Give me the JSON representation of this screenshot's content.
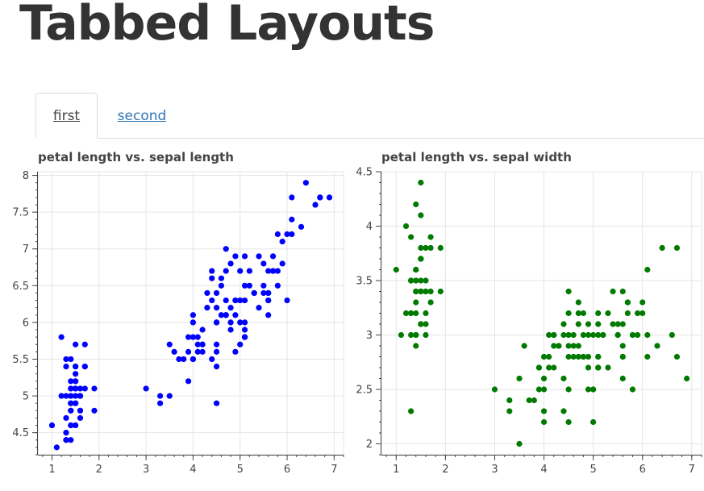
{
  "page": {
    "title": "Tabbed Layouts"
  },
  "tabs": [
    {
      "label": "first",
      "active": true
    },
    {
      "label": "second",
      "active": false
    }
  ],
  "colors": {
    "series_left": "#0000ff",
    "series_right": "#007a00",
    "tab_link": "#3275b8"
  },
  "chart_data": [
    {
      "type": "scatter",
      "title": "petal length vs. sepal length",
      "xlabel": "",
      "ylabel": "",
      "xlim": [
        0.7,
        7.2
      ],
      "ylim": [
        4.2,
        8.05
      ],
      "xticks": [
        1,
        2,
        3,
        4,
        5,
        6,
        7
      ],
      "yticks": [
        4.5,
        5,
        5.5,
        6,
        6.5,
        7,
        7.5,
        8
      ],
      "ytick_labels": [
        "4.5",
        "5",
        "5.5",
        "6",
        "6.5",
        "7",
        "7.5",
        "8"
      ],
      "grid": true,
      "color": "#0000ff",
      "x": [
        1.4,
        1.4,
        1.3,
        1.5,
        1.4,
        1.7,
        1.4,
        1.5,
        1.4,
        1.5,
        1.5,
        1.6,
        1.4,
        1.1,
        1.2,
        1.5,
        1.3,
        1.4,
        1.7,
        1.5,
        1.7,
        1.5,
        1.0,
        1.7,
        1.9,
        1.6,
        1.6,
        1.5,
        1.4,
        1.6,
        1.6,
        1.5,
        1.5,
        1.4,
        1.5,
        1.2,
        1.3,
        1.4,
        1.3,
        1.5,
        1.3,
        1.3,
        1.3,
        1.6,
        1.9,
        1.4,
        1.6,
        1.4,
        1.5,
        1.4,
        4.7,
        4.5,
        4.9,
        4.0,
        4.6,
        4.5,
        4.7,
        3.3,
        4.6,
        3.9,
        3.5,
        4.2,
        4.0,
        4.7,
        3.6,
        4.4,
        4.5,
        4.1,
        4.5,
        3.9,
        4.8,
        4.0,
        4.9,
        4.7,
        4.3,
        4.4,
        4.8,
        5.0,
        4.5,
        3.5,
        3.8,
        3.7,
        3.9,
        5.1,
        4.5,
        4.5,
        4.7,
        4.4,
        4.1,
        4.0,
        4.4,
        4.6,
        4.0,
        3.3,
        4.2,
        4.2,
        4.2,
        4.3,
        3.0,
        4.1,
        6.0,
        5.1,
        5.9,
        5.6,
        5.8,
        6.6,
        4.5,
        6.3,
        5.8,
        6.1,
        5.1,
        5.3,
        5.5,
        5.0,
        5.1,
        5.3,
        5.5,
        6.7,
        6.9,
        5.0,
        5.7,
        4.9,
        6.7,
        4.9,
        5.7,
        6.0,
        4.8,
        4.9,
        5.6,
        5.8,
        6.1,
        6.4,
        5.6,
        5.1,
        5.6,
        6.1,
        5.6,
        5.5,
        4.8,
        5.4,
        5.6,
        5.1,
        5.1,
        5.9,
        5.7,
        5.2,
        5.0,
        5.2,
        5.4,
        5.1
      ],
      "y": [
        5.1,
        4.9,
        4.7,
        4.6,
        5.0,
        5.4,
        4.6,
        5.0,
        4.4,
        4.9,
        5.4,
        4.8,
        4.8,
        4.3,
        5.8,
        5.7,
        5.4,
        5.1,
        5.7,
        5.1,
        5.4,
        5.1,
        4.6,
        5.1,
        4.8,
        5.0,
        5.0,
        5.2,
        5.2,
        4.7,
        4.8,
        5.4,
        5.2,
        5.5,
        4.9,
        5.0,
        5.5,
        4.9,
        4.4,
        5.1,
        5.0,
        4.5,
        4.4,
        5.0,
        5.1,
        4.8,
        5.1,
        4.6,
        5.3,
        5.0,
        7.0,
        6.4,
        6.9,
        5.5,
        6.5,
        5.7,
        6.3,
        4.9,
        6.6,
        5.2,
        5.0,
        5.9,
        6.0,
        6.1,
        5.6,
        6.7,
        5.6,
        5.8,
        6.2,
        5.6,
        5.9,
        6.1,
        6.3,
        6.1,
        6.4,
        6.6,
        6.8,
        6.7,
        6.0,
        5.7,
        5.5,
        5.5,
        5.8,
        6.0,
        5.4,
        6.0,
        6.7,
        6.3,
        5.6,
        5.5,
        5.5,
        6.1,
        5.8,
        5.0,
        5.6,
        5.7,
        5.7,
        6.2,
        5.1,
        5.7,
        6.3,
        5.8,
        7.1,
        6.3,
        6.5,
        7.6,
        4.9,
        7.3,
        6.7,
        7.2,
        6.5,
        6.4,
        6.8,
        5.7,
        5.8,
        6.4,
        6.5,
        7.7,
        7.7,
        6.0,
        6.9,
        5.6,
        7.7,
        6.3,
        6.7,
        7.2,
        6.2,
        6.1,
        6.4,
        7.2,
        7.4,
        7.9,
        6.4,
        6.3,
        6.1,
        7.7,
        6.3,
        6.4,
        6.0,
        6.9,
        6.7,
        6.9,
        5.8,
        6.8,
        6.7,
        6.7,
        6.3,
        6.5,
        6.2,
        5.9
      ]
    },
    {
      "type": "scatter",
      "title": "petal length vs. sepal width",
      "xlabel": "",
      "ylabel": "",
      "xlim": [
        0.7,
        7.2
      ],
      "ylim": [
        1.9,
        4.5
      ],
      "xticks": [
        1,
        2,
        3,
        4,
        5,
        6,
        7
      ],
      "yticks": [
        2,
        2.5,
        3,
        3.5,
        4,
        4.5
      ],
      "ytick_labels": [
        "2",
        "2.5",
        "3",
        "3.5",
        "4",
        "4.5"
      ],
      "grid": true,
      "color": "#007a00",
      "x": [
        1.4,
        1.4,
        1.3,
        1.5,
        1.4,
        1.7,
        1.4,
        1.5,
        1.4,
        1.5,
        1.5,
        1.6,
        1.4,
        1.1,
        1.2,
        1.5,
        1.3,
        1.4,
        1.7,
        1.5,
        1.7,
        1.5,
        1.0,
        1.7,
        1.9,
        1.6,
        1.6,
        1.5,
        1.4,
        1.6,
        1.6,
        1.5,
        1.5,
        1.4,
        1.5,
        1.2,
        1.3,
        1.4,
        1.3,
        1.5,
        1.3,
        1.3,
        1.3,
        1.6,
        1.9,
        1.4,
        1.6,
        1.4,
        1.5,
        1.4,
        4.7,
        4.5,
        4.9,
        4.0,
        4.6,
        4.5,
        4.7,
        3.3,
        4.6,
        3.9,
        3.5,
        4.2,
        4.0,
        4.7,
        3.6,
        4.4,
        4.5,
        4.1,
        4.5,
        3.9,
        4.8,
        4.0,
        4.9,
        4.7,
        4.3,
        4.4,
        4.8,
        5.0,
        4.5,
        3.5,
        3.8,
        3.7,
        3.9,
        5.1,
        4.5,
        4.5,
        4.7,
        4.4,
        4.1,
        4.0,
        4.4,
        4.6,
        4.0,
        3.3,
        4.2,
        4.2,
        4.2,
        4.3,
        3.0,
        4.1,
        6.0,
        5.1,
        5.9,
        5.6,
        5.8,
        6.6,
        4.5,
        6.3,
        5.8,
        6.1,
        5.1,
        5.3,
        5.5,
        5.0,
        5.1,
        5.3,
        5.5,
        6.7,
        6.9,
        5.0,
        5.7,
        4.9,
        6.7,
        4.9,
        5.7,
        6.0,
        4.8,
        4.9,
        5.6,
        5.8,
        6.1,
        6.4,
        5.6,
        5.1,
        5.6,
        6.1,
        5.6,
        5.5,
        4.8,
        5.4,
        5.6,
        5.1,
        5.1,
        5.9,
        5.7,
        5.2,
        5.0,
        5.2,
        5.4,
        5.1
      ],
      "y": [
        3.5,
        3.0,
        3.2,
        3.1,
        3.6,
        3.9,
        3.4,
        3.4,
        2.9,
        3.1,
        3.7,
        3.4,
        3.0,
        3.0,
        4.0,
        4.4,
        3.9,
        3.5,
        3.8,
        3.8,
        3.4,
        3.7,
        3.6,
        3.3,
        3.4,
        3.0,
        3.4,
        3.5,
        3.4,
        3.2,
        3.1,
        3.4,
        4.1,
        4.2,
        3.1,
        3.2,
        3.5,
        3.6,
        3.0,
        3.4,
        3.5,
        2.3,
        3.2,
        3.5,
        3.8,
        3.0,
        3.8,
        3.2,
        3.7,
        3.3,
        3.2,
        3.2,
        3.1,
        2.3,
        2.8,
        2.8,
        3.3,
        2.4,
        2.9,
        2.7,
        2.0,
        3.0,
        2.2,
        2.9,
        2.9,
        3.1,
        3.0,
        2.7,
        2.2,
        2.5,
        3.2,
        2.8,
        2.5,
        2.8,
        2.9,
        3.0,
        2.8,
        3.0,
        2.9,
        2.6,
        2.4,
        2.4,
        2.7,
        2.7,
        3.0,
        3.4,
        3.1,
        2.3,
        3.0,
        2.5,
        2.6,
        3.0,
        2.6,
        2.3,
        2.7,
        3.0,
        2.9,
        2.9,
        2.5,
        2.8,
        3.3,
        2.7,
        3.0,
        2.9,
        3.0,
        3.0,
        2.5,
        2.9,
        2.5,
        3.6,
        3.2,
        2.7,
        3.0,
        2.5,
        2.8,
        3.2,
        3.0,
        3.8,
        2.6,
        2.2,
        3.2,
        2.8,
        2.8,
        2.7,
        3.3,
        3.2,
        2.8,
        3.0,
        2.8,
        3.0,
        2.8,
        3.8,
        2.8,
        2.8,
        2.6,
        3.0,
        3.4,
        3.1,
        3.0,
        3.1,
        3.1,
        3.1,
        2.7,
        3.2,
        3.3,
        3.0,
        2.5,
        3.0,
        3.4,
        3.0
      ]
    }
  ]
}
